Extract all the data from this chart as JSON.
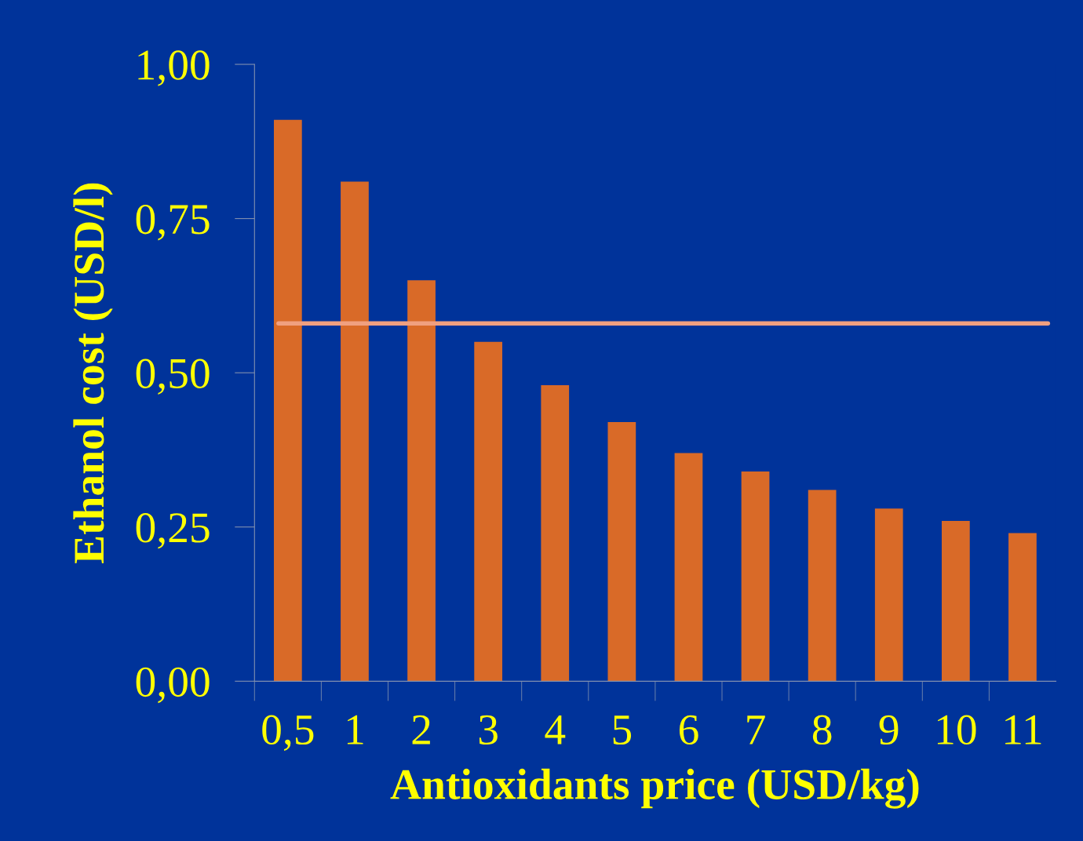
{
  "chart_data": {
    "type": "bar",
    "xlabel": "Antioxidants price (USD/kg)",
    "ylabel": "Ethanol cost (USD/l)",
    "categories": [
      "0,5",
      "1",
      "2",
      "3",
      "4",
      "5",
      "6",
      "7",
      "8",
      "9",
      "10",
      "11"
    ],
    "values": [
      0.91,
      0.81,
      0.65,
      0.55,
      0.48,
      0.42,
      0.37,
      0.34,
      0.31,
      0.28,
      0.26,
      0.24
    ],
    "color": "#d96a28",
    "ylim": [
      0,
      1.0
    ],
    "yticks": [
      {
        "value": 0,
        "label": "0,00"
      },
      {
        "value": 0.25,
        "label": "0,25"
      },
      {
        "value": 0.5,
        "label": "0,50"
      },
      {
        "value": 0.75,
        "label": "0,75"
      },
      {
        "value": 1.0,
        "label": "1,00"
      }
    ],
    "ref_lines": [
      {
        "axis": "y",
        "value": 0.58,
        "color": "#f0a080"
      }
    ],
    "grid": false,
    "legend": false
  }
}
